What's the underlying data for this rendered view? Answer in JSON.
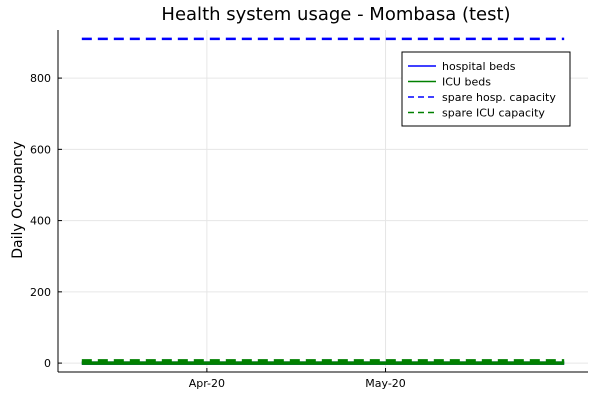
{
  "chart_data": {
    "type": "line",
    "title": "Health system usage - Mombasa (test)",
    "xlabel": "",
    "ylabel": "Daily Occupancy",
    "x_start": "2020-03-11",
    "x_end": "2020-05-31",
    "xlim": [
      "2020-03-07",
      "2020-06-04"
    ],
    "ylim": [
      -25,
      935
    ],
    "x_ticks": [
      {
        "date": "2020-04-01",
        "label": "Apr-20"
      },
      {
        "date": "2020-05-01",
        "label": "May-20"
      }
    ],
    "y_ticks": [
      0,
      200,
      400,
      600,
      800
    ],
    "grid": true,
    "legend_position": "top-right",
    "series": [
      {
        "name": "hospital beds",
        "color": "#0000ff",
        "style": "solid",
        "value": 0
      },
      {
        "name": "ICU beds",
        "color": "#008000",
        "style": "solid",
        "value": 0
      },
      {
        "name": "spare hosp. capacity",
        "color": "#0000ff",
        "style": "dashed",
        "value": 910
      },
      {
        "name": "spare ICU capacity",
        "color": "#008000",
        "style": "dashed",
        "value": 5
      }
    ]
  }
}
